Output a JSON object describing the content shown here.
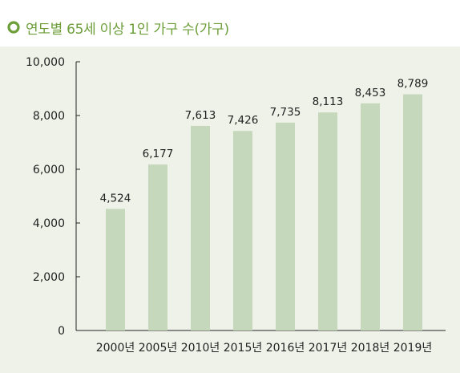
{
  "title": "연도별 65세 이상 1인 가구 수(가구)",
  "colors": {
    "accent": "#6d9e3a",
    "bar": "#c6d8bc",
    "panel": "#eef2e8",
    "text": "#222222"
  },
  "chart_data": {
    "type": "bar",
    "title": "연도별 65세 이상 1인 가구 수(가구)",
    "xlabel": "",
    "ylabel": "",
    "categories": [
      "2000년",
      "2005년",
      "2010년",
      "2015년",
      "2016년",
      "2017년",
      "2018년",
      "2019년"
    ],
    "values": [
      4524,
      6177,
      7613,
      7426,
      7735,
      8113,
      8453,
      8789
    ],
    "value_labels": [
      "4,524",
      "6,177",
      "7,613",
      "7,426",
      "7,735",
      "8,113",
      "8,453",
      "8,789"
    ],
    "ylim": [
      0,
      10000
    ],
    "yticks": [
      0,
      2000,
      4000,
      6000,
      8000,
      10000
    ],
    "ytick_labels": [
      "0",
      "2,000",
      "4,000",
      "6,000",
      "8,000",
      "10,000"
    ],
    "grid": false,
    "legend": "none"
  }
}
